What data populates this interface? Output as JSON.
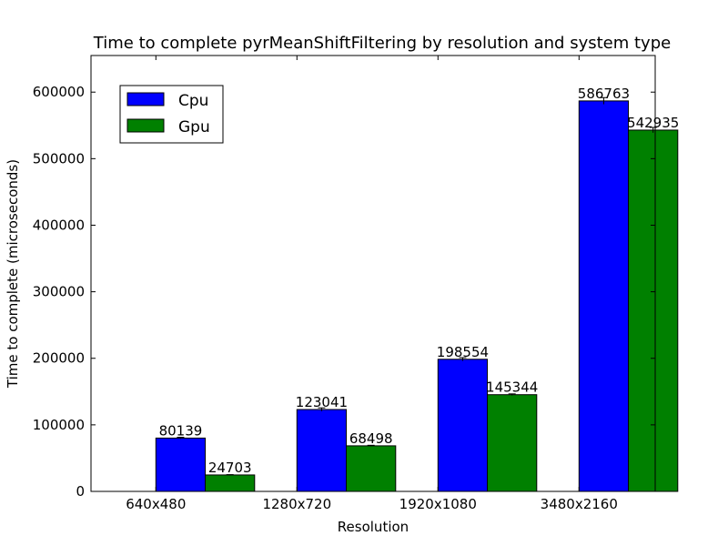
{
  "chart_data": {
    "type": "bar",
    "title": "Time to complete pyrMeanShiftFiltering by resolution and system type",
    "xlabel": "Resolution",
    "ylabel": "Time to complete (microseconds)",
    "categories": [
      "640x480",
      "1280x720",
      "1920x1080",
      "3480x2160"
    ],
    "series": [
      {
        "name": "Cpu",
        "color": "#0000ff",
        "values": [
          80139,
          123041,
          198554,
          586763
        ],
        "errors": [
          1200,
          2500,
          2500,
          5000
        ]
      },
      {
        "name": "Gpu",
        "color": "#008000",
        "values": [
          24703,
          68498,
          145344,
          542935
        ],
        "errors": [
          500,
          800,
          1200,
          4000
        ]
      }
    ],
    "ylim": [
      0,
      655000
    ],
    "yticks": [
      0,
      100000,
      200000,
      300000,
      400000,
      500000,
      600000
    ],
    "legend_position": "upper-left",
    "grid": false
  }
}
